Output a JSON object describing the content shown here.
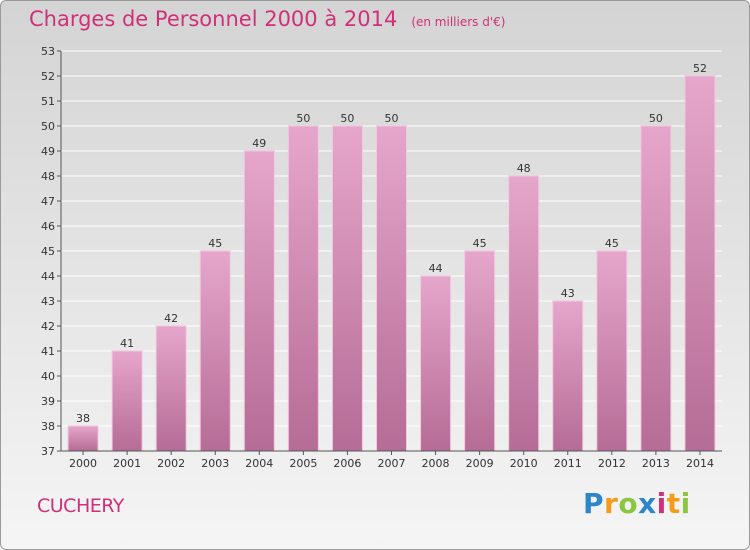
{
  "header": {
    "title": "Charges de Personnel 2000 à 2014",
    "subtitle": "(en milliers d'€)"
  },
  "footer": {
    "town": "CUCHERY",
    "logo": {
      "letters": [
        "P",
        "r",
        "o",
        "x",
        "i",
        "t",
        "i"
      ],
      "colors": [
        "#2e86c8",
        "#f39c1b",
        "#8cc63f",
        "#2e86c8",
        "#d0307a",
        "#f39c1b",
        "#8cc63f"
      ]
    }
  },
  "colors": {
    "bar_top": "#e6a6cb",
    "bar_bottom": "#b56c96",
    "bar_edge": "#f2c8e0",
    "grid": "#ffffff",
    "accent": "#d0307a"
  },
  "chart_data": {
    "type": "bar",
    "title": "Charges de Personnel 2000 à 2014",
    "subtitle": "(en milliers d'€)",
    "categories": [
      "2000",
      "2001",
      "2002",
      "2003",
      "2004",
      "2005",
      "2006",
      "2007",
      "2008",
      "2009",
      "2010",
      "2011",
      "2012",
      "2013",
      "2014"
    ],
    "values": [
      38,
      41,
      42,
      45,
      49,
      50,
      50,
      50,
      44,
      45,
      48,
      43,
      45,
      50,
      52
    ],
    "ylim": [
      37,
      53
    ],
    "yticks": [
      37,
      38,
      39,
      40,
      41,
      42,
      43,
      44,
      45,
      46,
      47,
      48,
      49,
      50,
      51,
      52,
      53
    ],
    "grid": true,
    "legend": "none"
  }
}
